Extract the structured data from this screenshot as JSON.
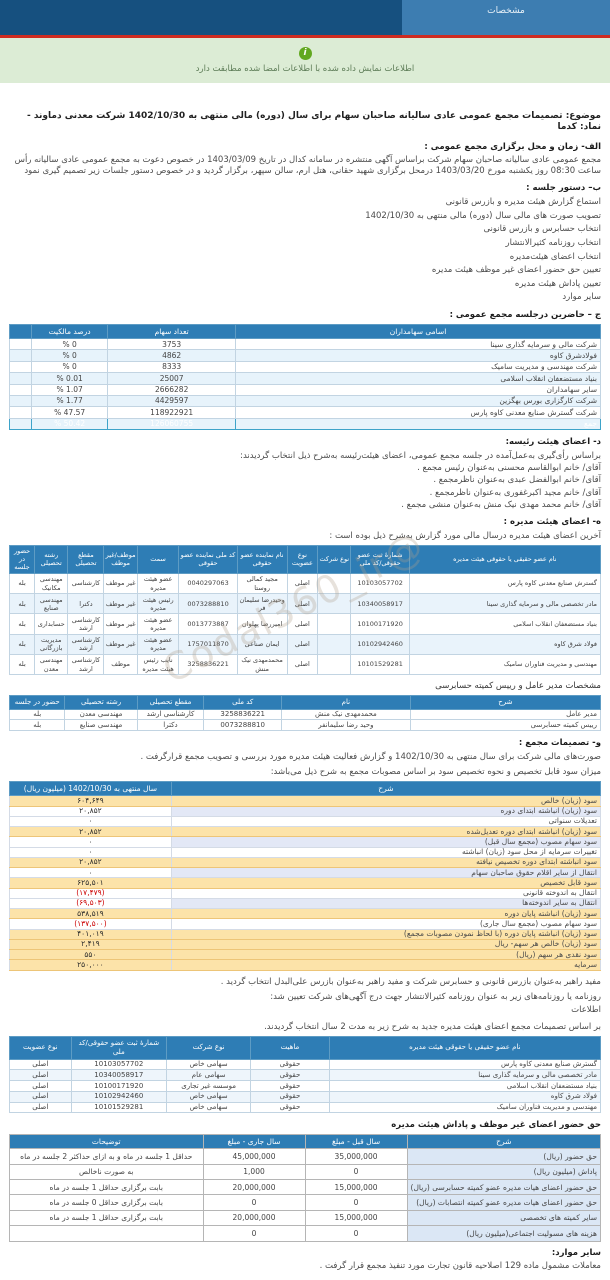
{
  "header": {
    "tab_label": "مشخصات",
    "info_glyph": "i",
    "alert_text": "اطلاعات نمایش داده شده با اطلاعات امضا شده مطابقت دارد"
  },
  "subject": "موضوع: تصمیمات مجمع عمومی عادی سالیانه صاحبان سهام برای سال (دوره) مالی منتهی به 1402/10/30 شرکت معدنی دماوند - نماد: کدما",
  "section_a": {
    "title": "الف- زمان و محل برگزاری مجمع عمومی :",
    "body": "مجمع عمومی عادی سالیانه صاحبان سهام شرکت براساس آگهی منتشره در سامانه کدال در تاریخ 1403/03/09 در خصوص دعوت به مجمع عمومی عادی سالیانه رأس ساعت 08:30 روز یکشنبه مورخ 1403/03/20 درمحل برگزاری شهید حقانی، هتل ارم، سالن سپهر،  برگزار گردید و در خصوص دستور جلسات زیر تصمیم گیری نمود"
  },
  "section_b": {
    "title": "ب– دستور جلسه :",
    "items": [
      "استماع گزارش هیئت مدیره و بازرس قانونی",
      "تصویب صورت های مالی سال (دوره) مالی منتهی به 1402/10/30",
      "انتخاب حسابرس و بازرس قانونی",
      "انتخاب روزنامه کثیرالانتشار",
      "انتخاب اعضای هیئت‌مدیره",
      "تعیین حق حضور اعضای غیر موظف هیئت مدیره",
      "تعیین پاداش هیئت مدیره",
      "سایر موارد"
    ]
  },
  "attendees": {
    "title": "ج – حاضرین درجلسه مجمع عمومی :",
    "headers": [
      "اسامی سهامداران",
      "تعداد سهام",
      "درصد مالکیت",
      ""
    ],
    "rows": [
      [
        "شرکت مالی و سرمایه گذاری سینا",
        "3753",
        "% 0",
        "",
        ""
      ],
      [
        "فولادشرق کاوه",
        "4862",
        "% 0",
        "",
        ""
      ],
      [
        "شرکت مهندسی و مدیریت سامیک",
        "8333",
        "% 0",
        "",
        ""
      ],
      [
        "بنیاد مستضعفان انقلاب اسلامی",
        "25007",
        "% 0.01",
        "",
        ""
      ],
      [
        "سایر سهامداران",
        "2666282",
        "% 1.07",
        "",
        ""
      ],
      [
        "شرکت کارگزاری بورس بهگزین",
        "4429597",
        "% 1.77",
        "",
        ""
      ],
      [
        "شرکت گسترش صنایع معدنی کاوه پارس",
        "118922921",
        "% 47.57",
        "",
        ""
      ],
      [
        "جمع",
        "126060755",
        "% 50.42",
        "",
        "total"
      ]
    ]
  },
  "section_d": {
    "title": "د- اعضای هیئت رئیسه:",
    "body": "براساس رأی‌گیری به‌عمل‌آمده در جلسه مجمع عمومی، اعضای هیئت‌رئیسه به‌شرح ذیل انتخاب گردیدند:",
    "members": [
      "آقای/ خانم ابوالقاسم محسنی به‌عنوان رئیس مجمع .",
      "آقای/ خانم ابوالفضل عبدی به‌عنوان ناظرمجمع .",
      "آقای/ خانم مجید اکبرغفوری به‌عنوان ناظرمجمع .",
      "آقای/ خانم محمد مهدی نیک منش به‌عنوان منشی مجمع ."
    ]
  },
  "board": {
    "title": "ه- اعضای هیئت مدیره :",
    "body": "آخرین اعضای هیئت مدیره درسال مالی مورد گزارش به‌شرح ذیل بوده است :",
    "headers": [
      "نام عضو حقیقی یا حقوقی هیئت مدیره",
      "شمارۀ ثبت عضو حقوقی/کد ملی",
      "نوع شرکت",
      "نوع عضویت",
      "نام نماینده عضو حقوقی",
      "کد ملی نماینده عضو حقوقی",
      "سمت",
      "موظف/غیر موظف",
      "مقطع تحصیلی",
      "رشته تحصیلی",
      "حضور در جلسه"
    ],
    "rows": [
      [
        "گسترش صنایع معدنی کاوه پارس",
        "10103057702",
        "",
        "اصلی",
        "مجید کمالی روستا",
        "0040297063",
        "عضو هیئت مدیره",
        "غیر موظف",
        "کارشناسی",
        "مهندسی مکانیک",
        "بله"
      ],
      [
        "مادر تخصصی مالی و سرمایه گذاری سینا",
        "10340058917",
        "",
        "اصلی",
        "وحیدرضا سلیمان فر",
        "0073288810",
        "رئیس هیئت مدیره",
        "غیر موظف",
        "دکترا",
        "مهندسی صنایع",
        "بله"
      ],
      [
        "بنیاد مستضعفان انقلاب اسلامی",
        "10100171920",
        "",
        "اصلی",
        "امیررضا پهلوان",
        "0013773887",
        "عضو هیئت مدیره",
        "غیر موظف",
        "کارشناسی ارشد",
        "حسابداری",
        "بله"
      ],
      [
        "فولاد شرق کاوه",
        "10102942460",
        "",
        "اصلی",
        "ایمان صناعی",
        "1757011870",
        "عضو هیئت مدیره",
        "غیر موظف",
        "کارشناسی ارشد",
        "مدیریت بازرگانی",
        "بله"
      ],
      [
        "مهندسی و مدیریت فناوران سامیک",
        "10101529281",
        "",
        "اصلی",
        "محمدمهدی نیک منش",
        "3258836221",
        "نایب رئیس هیئت مدیره",
        "موظف",
        "کارشناسی ارشد",
        "مهندسی معدن",
        "بله"
      ]
    ]
  },
  "ceo": {
    "title": "مشخصات مدیر عامل و رییس کمیته حسابرسی",
    "headers": [
      "شرح",
      "نام",
      "کد ملی",
      "مقطع تحصیلی",
      "رشته تحصیلی",
      "حضور در جلسه"
    ],
    "rows": [
      [
        "مدیر عامل",
        "محمدمهدی نیک منش",
        "3258836221",
        "کارشناسی ارشد",
        "مهندسی معدن",
        "بله"
      ],
      [
        "رییس کمیته حسابرسی",
        "وحید رضا سلیمانفر",
        "0073288810",
        "دکترا",
        "مهندسی صنایع",
        "بله"
      ]
    ]
  },
  "decisions": {
    "title": "و- تصمیمات مجمع :",
    "body1": "صورت‌های مالی شرکت برای سال منتهی به 1402/10/30 و گزارش فعالیت هیئت مدیره مورد بررسی و تصویب مجمع قرارگرفت .",
    "body2": "میزان سود قابل تخصیص و نحوه تخصیص سود بر اساس مصوبات مجمع به شرح ذیل می‌باشد:"
  },
  "profit": {
    "headers": [
      "شرح",
      "سال منتهی به 1402/10/30 (میلیون ریال)"
    ],
    "rows": [
      [
        "سود (زیان) خالص",
        "۶۰۴,۶۴۹",
        "y"
      ],
      [
        "سود (زیان) انباشته ابتدای دوره",
        "۲۰,۸۵۲",
        "lav"
      ],
      [
        "تعدیلات سنواتی",
        "۰",
        "w"
      ],
      [
        "سود (زیان) انباشته ابتدای دوره تعدیل‌شده",
        "۲۰,۸۵۲",
        "y"
      ],
      [
        "سود سهام مصوب (مجمع سال قبل)",
        "۰",
        "lav"
      ],
      [
        "تغییرات سرمایه از محل سود (زیان) انباشته",
        "۰",
        "w"
      ],
      [
        "سود انباشته ابتدای دوره تخصیص نیافته",
        "۲۰,۸۵۲",
        "y"
      ],
      [
        "انتقال از سایر اقلام حقوق صاحبان سهام",
        "۰",
        "lav"
      ],
      [
        "سود قابل تخصیص",
        "۶۲۵,۵۰۱",
        "y"
      ],
      [
        "انتقال به اندوخته قانونی",
        "(۱۷,۴۷۹)",
        "w"
      ],
      [
        "انتقال به سایر اندوخته‌ها",
        "(۶۹,۵۰۳)",
        "lav"
      ],
      [
        "سود (زیان) انباشته پایان دوره",
        "۵۳۸,۵۱۹",
        "y"
      ],
      [
        "سود سهام مصوب (مجمع سال جاری)",
        "(۱۳۷,۵۰۰)",
        "w"
      ],
      [
        "سود (زیان) انباشته پایان دوره (با لحاظ نمودن مصوبات مجمع)",
        "۴۰۱,۰۱۹",
        "y"
      ],
      [
        "سود (زیان) خالص هر سهم- ریال",
        "۲,۴۱۹",
        "y"
      ],
      [
        "سود نقدی هر سهم (ریال)",
        "۵۵۰",
        "y"
      ],
      [
        "سرمایه",
        "۲۵۰,۰۰۰",
        "y"
      ]
    ]
  },
  "auditor_text": "مفید راهبر به‌عنوان بازرس قانونی و حسابرس شرکت و  مفید راهبر به‌عنوان بازرس علی‌البدل انتخاب گردید .",
  "newspaper": {
    "intro": "روزنامه یا روزنامه‌های زیر به عنوان روزنامه کثیرالانتشار جهت درج آگهی‌های شرکت تعیین شد:",
    "name": "اطلاعات"
  },
  "new_board": {
    "intro": "بر اساس تصمیمات مجمع اعضای هیئت مدیره جدید به شرح زیر به مدت 2 سال انتخاب گردیدند.",
    "headers": [
      "نام عضو حقیقی یا حقوقی هیئت مدیره",
      "ماهیت",
      "نوع شرکت",
      "شمارۀ ثبت عضو حقوقی/کد ملی",
      "نوع عضویت"
    ],
    "rows": [
      [
        "گسترش صنایع معدنی کاوه پارس",
        "حقوقی",
        "سهامی خاص",
        "10103057702",
        "اصلی"
      ],
      [
        "مادر تخصصی مالی و سرمایه گذاری سینا",
        "حقوقی",
        "سهامی عام",
        "10340058917",
        "اصلی"
      ],
      [
        "بنیاد مستضعفان انقلاب اسلامی",
        "حقوقی",
        "موسسه غیر تجاری",
        "10100171920",
        "اصلی"
      ],
      [
        "فولاد شرق کاوه",
        "حقوقی",
        "سهامی خاص",
        "10102942460",
        "اصلی"
      ],
      [
        "مهندسی و مدیریت فناوران سامیک",
        "حقوقی",
        "سهامی خاص",
        "10101529281",
        "اصلی"
      ]
    ]
  },
  "fees": {
    "title": "حق حضور اعضای غیر موظف و پاداش هیئت مدیره",
    "headers": [
      "شرح",
      "سال قبل - مبلغ",
      "سال جاری - مبلغ",
      "توضیحات"
    ],
    "rows": [
      [
        "حق حضور (ریال)",
        "35,000,000",
        "45,000,000",
        "حداقل 1  جلسه در ماه   و به ازای حداکثر 2  جلسه در ماه"
      ],
      [
        "پاداش (میلیون ریال)",
        "0",
        "1,000",
        "به صورت ناخالص"
      ],
      [
        "حق حضور اعضای هیات مدیره عضو کمیته حسابرسی (ریال)",
        "15,000,000",
        "20,000,000",
        "بابت برگزاری حداقل 1 جلسه در ماه"
      ],
      [
        "حق حضور اعضای هیات مدیره عضو کمیته انتصابات (ریال)",
        "0",
        "0",
        "بابت برگزاری حداقل 0 جلسه در ماه"
      ],
      [
        "سایر کمیته های تخصصی",
        "15,000,000",
        "20,000,000",
        "بابت برگزاری حداقل 1 جلسه در ماه"
      ],
      [
        "هزینه های مسولیت اجتماعی(میلیون ریال)",
        "0",
        "0",
        ""
      ]
    ]
  },
  "other": {
    "title": "سایر موارد:",
    "body": "معاملات مشمول ماده 129 اصلاحیه قانون تجارت مورد تنفیذ مجمع قرار گرفت ."
  },
  "watermark": "@Codal360_ir",
  "colors": {
    "header_navy": "#16507f",
    "tab_blue": "#3d7db1",
    "divider_red": "#d02b20",
    "alert_green_bg": "#dcecd5",
    "info_green": "#62a820",
    "table_header_blue": "#2e7db5",
    "total_row_teal": "#4ab1d7",
    "highlight_yellow": "#fce3a9",
    "row_lavender": "#e3e8f6",
    "row_lightblue": "#e7f3fb",
    "negative_red": "#cc0000"
  }
}
